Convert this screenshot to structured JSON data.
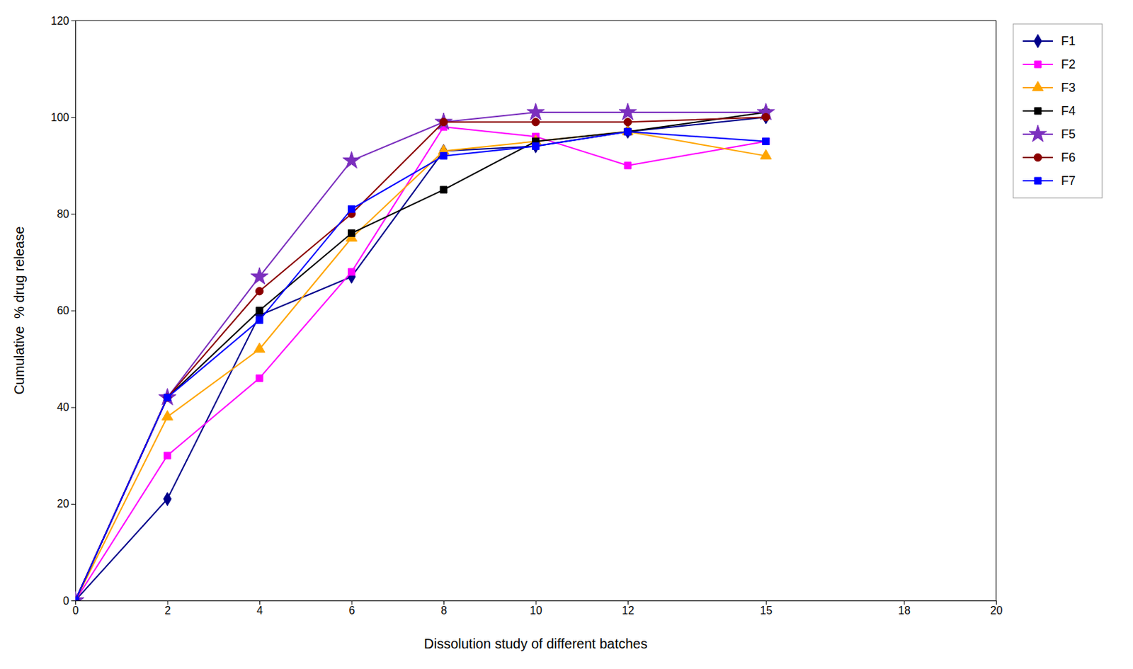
{
  "chart_data": {
    "type": "line",
    "xlabel": "Dissolution study of different batches",
    "ylabel": "Cumulative  % drug release",
    "x": [
      0,
      2,
      4,
      6,
      8,
      10,
      12,
      15
    ],
    "series": [
      {
        "name": "F1",
        "color": "#00008B",
        "marker": "diamond",
        "values": [
          0,
          21,
          59,
          67,
          93,
          94,
          97,
          100
        ]
      },
      {
        "name": "F2",
        "color": "#FF00FF",
        "marker": "square",
        "values": [
          0,
          30,
          46,
          68,
          98,
          96,
          90,
          95
        ]
      },
      {
        "name": "F3",
        "color": "#FFA500",
        "marker": "triangle",
        "values": [
          0,
          38,
          52,
          75,
          93,
          95,
          97,
          92
        ]
      },
      {
        "name": "F4",
        "color": "#000000",
        "marker": "square",
        "values": [
          0,
          42,
          60,
          76,
          85,
          95,
          97,
          101
        ]
      },
      {
        "name": "F5",
        "color": "#7B2FBE",
        "marker": "star",
        "values": [
          0,
          42,
          67,
          91,
          99,
          101,
          101,
          101
        ]
      },
      {
        "name": "F6",
        "color": "#8B0000",
        "marker": "circle",
        "values": [
          0,
          42,
          64,
          80,
          99,
          99,
          99,
          100
        ]
      },
      {
        "name": "F7",
        "color": "#0000FF",
        "marker": "square",
        "values": [
          0,
          42,
          58,
          81,
          92,
          94,
          97,
          95
        ]
      }
    ],
    "xlim": [
      0,
      20
    ],
    "ylim": [
      0,
      120
    ],
    "xticks": [
      0,
      2,
      4,
      6,
      8,
      10,
      12,
      15,
      18,
      20
    ],
    "yticks": [
      0,
      20,
      40,
      60,
      80,
      100,
      120
    ],
    "grid": false,
    "legend": "right"
  }
}
